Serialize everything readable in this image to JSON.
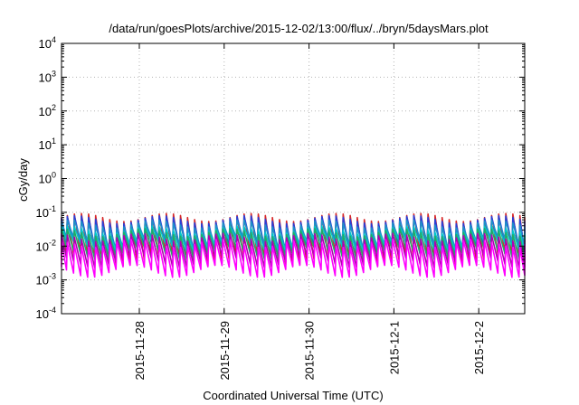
{
  "chart_data": {
    "type": "line",
    "title": "/data/run/goesPlots/archive/2015-12-02/13:00/flux/../bryn/5daysMars.plot",
    "xlabel": "Coordinated Universal Time (UTC)",
    "ylabel": "cGy/day",
    "yscale": "log",
    "ylim": [
      0.0001,
      10000
    ],
    "xlim": [
      "2015-11-27 02:00",
      "2015-12-02 13:00"
    ],
    "grid": true,
    "yticks": [
      {
        "value": 0.0001,
        "mantissa": "10",
        "exp": "-4"
      },
      {
        "value": 0.001,
        "mantissa": "10",
        "exp": "-3"
      },
      {
        "value": 0.01,
        "mantissa": "10",
        "exp": "-2"
      },
      {
        "value": 0.1,
        "mantissa": "10",
        "exp": "-1"
      },
      {
        "value": 1,
        "mantissa": "10",
        "exp": "0"
      },
      {
        "value": 10,
        "mantissa": "10",
        "exp": "1"
      },
      {
        "value": 100,
        "mantissa": "10",
        "exp": "2"
      },
      {
        "value": 1000,
        "mantissa": "10",
        "exp": "3"
      },
      {
        "value": 10000,
        "mantissa": "10",
        "exp": "4"
      }
    ],
    "xticks": [
      "2015-11-28",
      "2015-11-29",
      "2015-11-30",
      "2015-12-1",
      "2015-12-2"
    ],
    "cycles_per_day": 12,
    "series": [
      {
        "color": "#d62728",
        "peak": 0.07,
        "trough": 0.004
      },
      {
        "color": "#2a3fd6",
        "peak": 0.06,
        "trough": 0.009
      },
      {
        "color": "#1e90c8",
        "peak": 0.045,
        "trough": 0.012
      },
      {
        "color": "#00c8c8",
        "peak": 0.03,
        "trough": 0.01
      },
      {
        "color": "#22aa66",
        "peak": 0.025,
        "trough": 0.006
      },
      {
        "color": "#b000b0",
        "peak": 0.018,
        "trough": 0.0035
      },
      {
        "color": "#ff00ff",
        "peak": 0.012,
        "trough": 0.0018
      }
    ]
  }
}
